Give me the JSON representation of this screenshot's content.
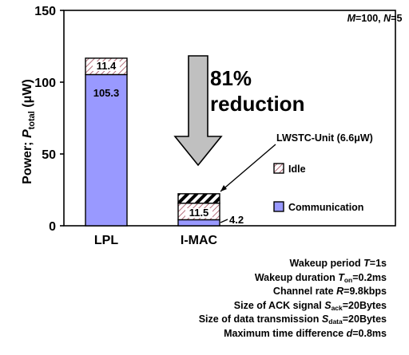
{
  "chart_data": {
    "type": "bar",
    "stacked": true,
    "categories": [
      "LPL",
      "I-MAC"
    ],
    "ylabel": "Power; P_total (μW)",
    "ylabel_parts": {
      "prefix": "Power; ",
      "symbol": "P",
      "sub": "total",
      "unit": " (μW)"
    },
    "ylim": [
      0,
      150
    ],
    "yticks": [
      0,
      50,
      100,
      150
    ],
    "grid": false,
    "annotation_topright": {
      "m_sym": "M",
      "m_val": "=100, ",
      "n_sym": "N",
      "n_val": "=5"
    },
    "series": [
      {
        "name": "Communication",
        "color": "#9999ff",
        "values": [
          105.3,
          4.2
        ],
        "labels": [
          "105.3",
          "4.2"
        ]
      },
      {
        "name": "Idle",
        "pattern": "pink-diagonal-hatch",
        "values": [
          11.4,
          11.5
        ],
        "labels": [
          "11.4",
          "11.5"
        ]
      },
      {
        "name": "LWSTC-Unit (6.6μW)",
        "pattern": "black-white-diagonal-stripes",
        "values": [
          0,
          6.6
        ],
        "labels": [
          "",
          ""
        ]
      }
    ],
    "legend": {
      "placement": "right",
      "items": [
        {
          "label": "LWSTC-Unit (6.6μW)",
          "swatch": "none"
        },
        {
          "label": "Idle",
          "swatch": "pink-hatch"
        },
        {
          "label": "Communication",
          "swatch": "#9999ff"
        }
      ]
    },
    "arrow_text": {
      "line1": "81%",
      "line2": "reduction"
    }
  },
  "parameters": [
    {
      "pre": "Wakeup period ",
      "sym": "T",
      "sub": "",
      "post": "=1s"
    },
    {
      "pre": "Wakeup duration ",
      "sym": "T",
      "sub": "on",
      "post": "=0.2ms"
    },
    {
      "pre": "Channel rate ",
      "sym": "R",
      "sub": "",
      "post": "=9.8kbps"
    },
    {
      "pre": "Size of ACK signal ",
      "sym": "S",
      "sub": "ack",
      "post": "=20Bytes"
    },
    {
      "pre": "Size of data transmission ",
      "sym": "S",
      "sub": "data",
      "post": "=20Bytes"
    },
    {
      "pre": "Maximum time difference ",
      "sym": "d",
      "sub": "",
      "post": "=0.8ms"
    }
  ]
}
